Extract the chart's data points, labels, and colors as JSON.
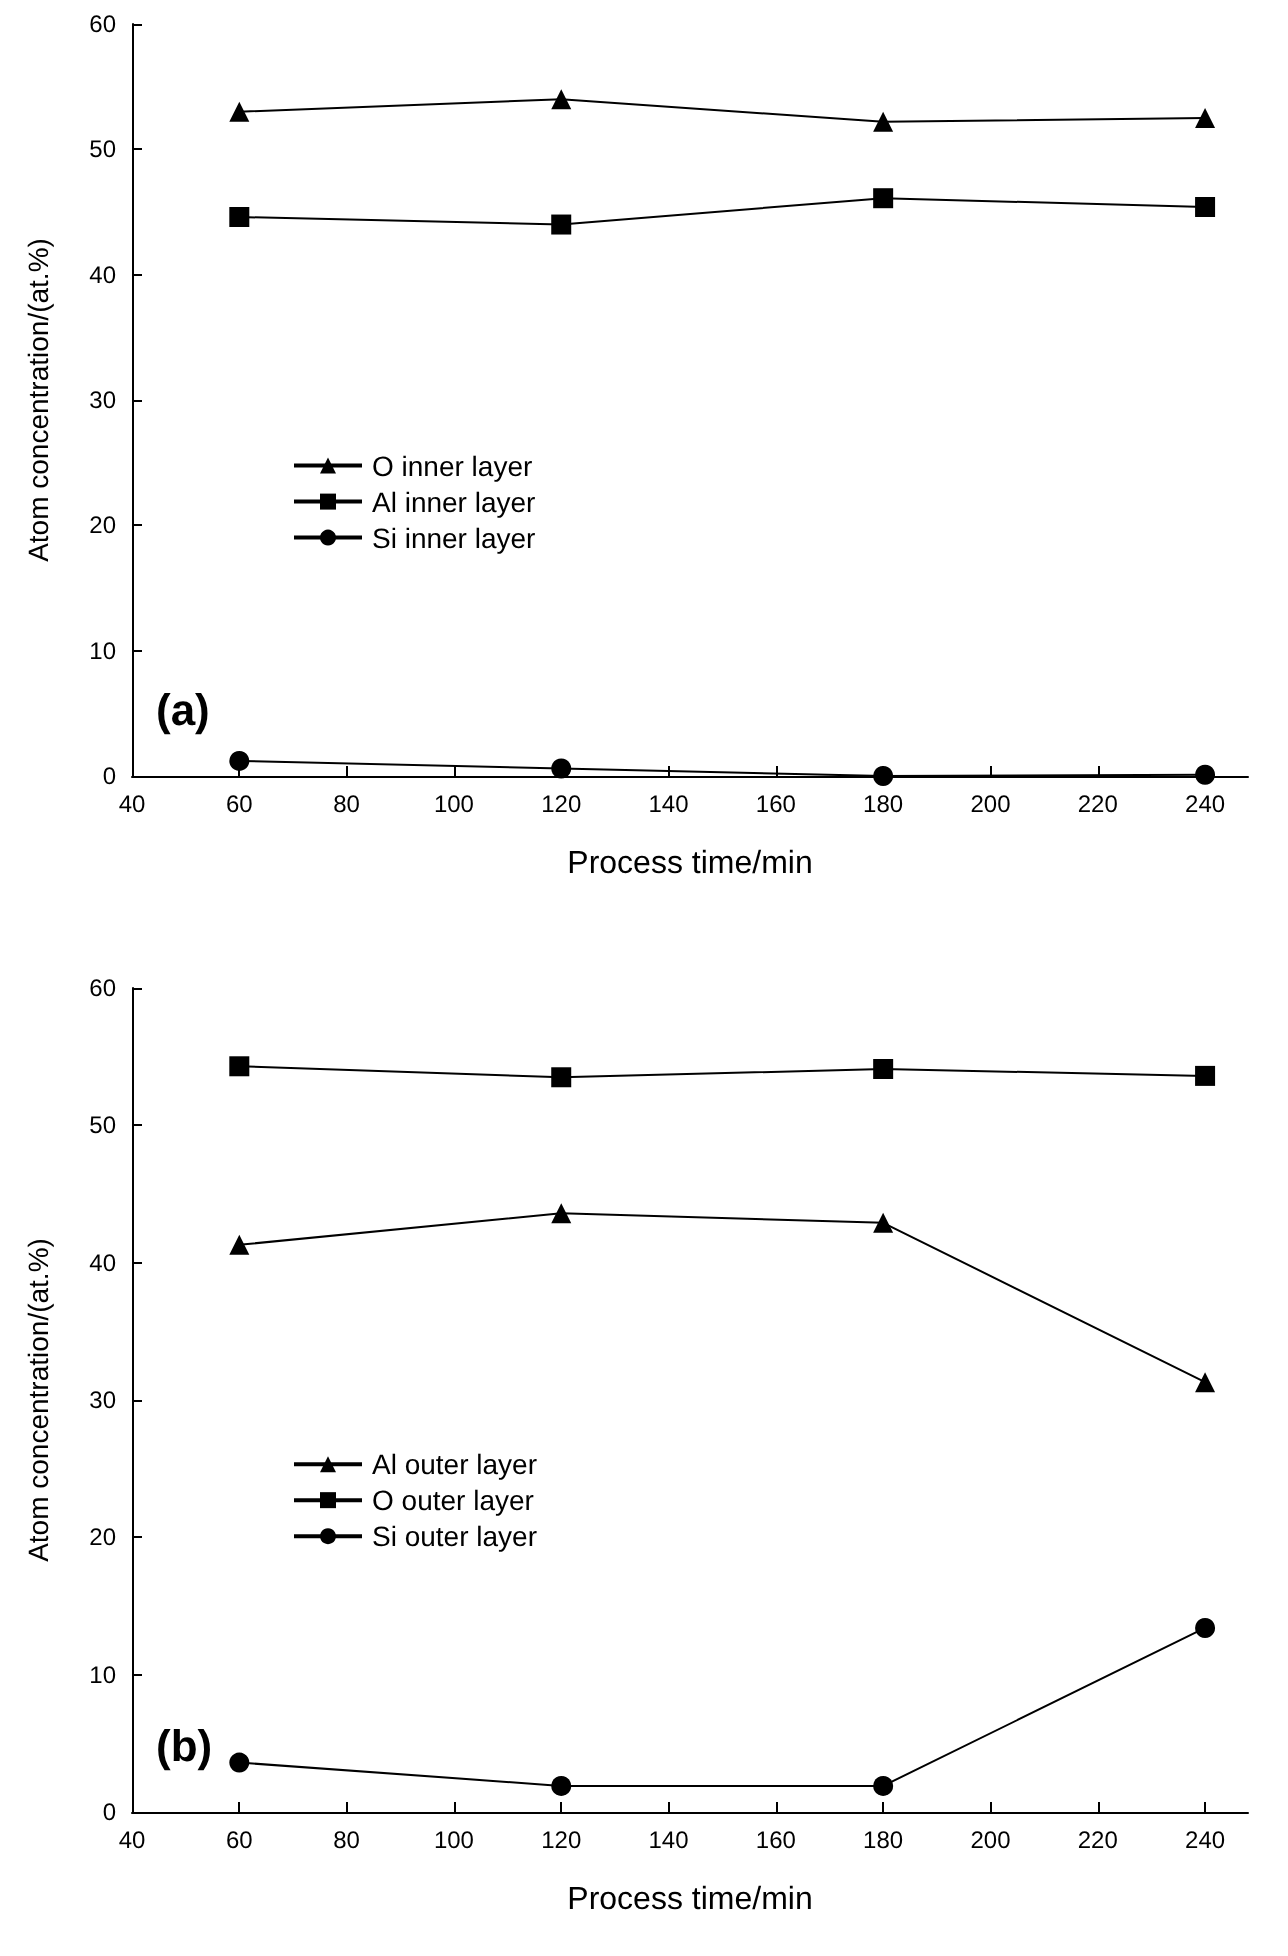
{
  "chart_data": [
    {
      "type": "line",
      "xlabel": "Process time/min",
      "ylabel": "Atom concentration/(at.%)",
      "x": [
        60,
        120,
        180,
        240
      ],
      "xlim": [
        40,
        248
      ],
      "xticks": [
        40,
        60,
        80,
        100,
        120,
        140,
        160,
        180,
        200,
        220,
        240
      ],
      "ylim": [
        0,
        60
      ],
      "yticks": [
        0,
        10,
        20,
        30,
        40,
        50,
        60
      ],
      "legend": "left",
      "grid": false,
      "annotations": [
        "(a)"
      ],
      "series": [
        {
          "name": "O inner layer",
          "color": "#000000",
          "marker": "triangle",
          "values": [
            53,
            54,
            52.2,
            52.5
          ]
        },
        {
          "name": "Al inner layer",
          "color": "#000000",
          "marker": "square",
          "values": [
            44.6,
            44,
            46.1,
            45.4
          ]
        },
        {
          "name": "Si inner layer",
          "color": "#000000",
          "marker": "circle",
          "values": [
            1.2,
            0.6,
            0,
            0.1
          ]
        }
      ]
    },
    {
      "type": "line",
      "xlabel": "Process time/min",
      "ylabel": "Atom concentration/(at.%)",
      "x": [
        60,
        120,
        180,
        240
      ],
      "xlim": [
        40,
        248
      ],
      "xticks": [
        40,
        60,
        80,
        100,
        120,
        140,
        160,
        180,
        200,
        220,
        240
      ],
      "ylim": [
        0,
        60
      ],
      "yticks": [
        0,
        10,
        20,
        30,
        40,
        50,
        60
      ],
      "legend": "left",
      "grid": false,
      "annotations": [
        "(b)"
      ],
      "series": [
        {
          "name": "Al outer layer",
          "color": "#000000",
          "marker": "triangle",
          "values": [
            41.3,
            43.6,
            42.9,
            31.3
          ]
        },
        {
          "name": "O outer layer",
          "color": "#000000",
          "marker": "square",
          "values": [
            54.3,
            53.5,
            54.1,
            53.6
          ]
        },
        {
          "name": "Si outer layer",
          "color": "#000000",
          "marker": "circle",
          "values": [
            3.6,
            1.9,
            1.9,
            13.4
          ]
        }
      ]
    }
  ]
}
